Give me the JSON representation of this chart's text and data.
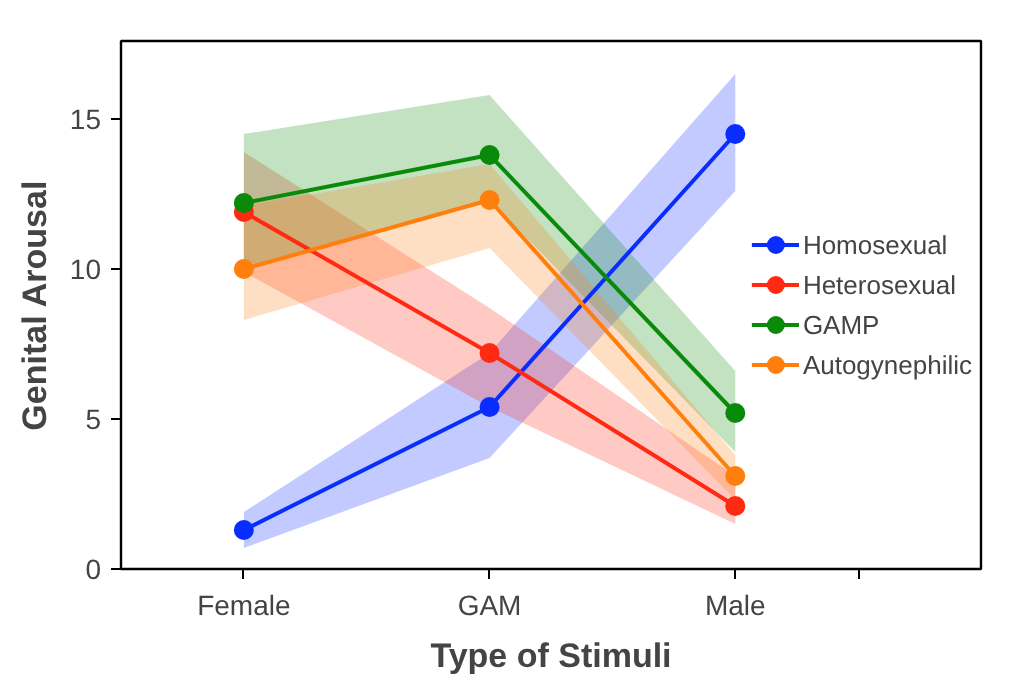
{
  "chart_data": {
    "type": "line",
    "xlabel": "Type of Stimuli",
    "ylabel": "Genital Arousal",
    "categories": [
      "Female",
      "GAM",
      "Male"
    ],
    "ylim": [
      0,
      17.6
    ],
    "yticks": [
      0,
      5,
      10,
      15
    ],
    "series": [
      {
        "name": "Homosexual",
        "color": "#0a2dff",
        "values": [
          1.3,
          5.4,
          14.5
        ],
        "lower": [
          0.7,
          3.7,
          12.6
        ],
        "upper": [
          1.9,
          7.2,
          16.5
        ]
      },
      {
        "name": "Heterosexual",
        "color": "#ff2a12",
        "values": [
          11.9,
          7.2,
          2.1
        ],
        "lower": [
          9.9,
          5.4,
          1.5
        ],
        "upper": [
          13.9,
          8.7,
          3.1
        ]
      },
      {
        "name": "GAMP",
        "color": "#0a8a0a",
        "values": [
          12.2,
          13.8,
          5.2
        ],
        "lower": [
          10.0,
          12.3,
          3.9
        ],
        "upper": [
          14.5,
          15.8,
          6.6
        ]
      },
      {
        "name": "Autogynephilic",
        "color": "#ff7f0e",
        "values": [
          10.0,
          12.3,
          3.1
        ],
        "lower": [
          8.3,
          10.7,
          2.3
        ],
        "upper": [
          12.1,
          13.5,
          3.8
        ]
      }
    ],
    "grid": false,
    "legend": "right",
    "marker": "circle",
    "line_style": "solid"
  }
}
